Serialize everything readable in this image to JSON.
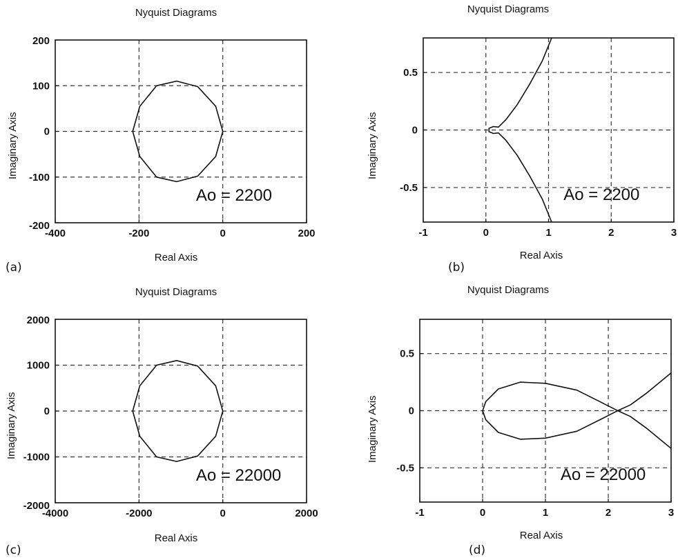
{
  "chart_data": [
    {
      "type": "line",
      "panel_label": "(a)",
      "title": "Nyquist Diagrams",
      "xlabel": "Real Axis",
      "ylabel": "Imaginary Axis",
      "xlim": [
        -400,
        200
      ],
      "ylim": [
        -200,
        200
      ],
      "xticks": [
        "-400",
        "-200",
        "0",
        "200"
      ],
      "yticks": [
        "-200",
        "-100",
        "0",
        "100",
        "200"
      ],
      "grid": true,
      "annotation": "Ao = 2200",
      "series": [
        {
          "x": [
            0,
            -17,
            -60,
            -110,
            -158,
            -198,
            -215,
            -198,
            -158,
            -110,
            -60,
            -17,
            0
          ],
          "y": [
            0,
            55,
            98,
            110,
            100,
            55,
            0,
            -55,
            -100,
            -110,
            -98,
            -55,
            0
          ]
        }
      ]
    },
    {
      "type": "line",
      "panel_label": "(b)",
      "title": "Nyquist Diagrams",
      "xlabel": "Real Axis",
      "ylabel": "Imaginary Axis",
      "xlim": [
        -1,
        3
      ],
      "ylim": [
        -0.8,
        0.8
      ],
      "xticks": [
        "-1",
        "0",
        "1",
        "2",
        "3"
      ],
      "yticks": [
        "0.5",
        "0",
        "-0.5"
      ],
      "grid": true,
      "annotation": "Ao = 2200",
      "series": [
        {
          "x": [
            1.05,
            0.9,
            0.7,
            0.5,
            0.32,
            0.2,
            0.12,
            0.05,
            0.05,
            0.12,
            0.2,
            0.32,
            0.5,
            0.7,
            0.9,
            1.05
          ],
          "y": [
            0.8,
            0.6,
            0.4,
            0.22,
            0.09,
            0.025,
            0.03,
            0.015,
            -0.015,
            -0.03,
            -0.025,
            -0.09,
            -0.22,
            -0.4,
            -0.6,
            -0.8
          ]
        }
      ]
    },
    {
      "type": "line",
      "panel_label": "(c)",
      "title": "Nyquist Diagrams",
      "xlabel": "Real Axis",
      "ylabel": "Imaginary Axis",
      "xlim": [
        -4000,
        2000
      ],
      "ylim": [
        -2000,
        2000
      ],
      "xticks": [
        "-4000",
        "-2000",
        "0",
        "2000"
      ],
      "yticks": [
        "-2000",
        "-1000",
        "0",
        "1000",
        "2000"
      ],
      "grid": true,
      "annotation": "Ao = 22000",
      "series": [
        {
          "x": [
            0,
            -170,
            -600,
            -1100,
            -1580,
            -1980,
            -2150,
            -1980,
            -1580,
            -1100,
            -600,
            -170,
            0
          ],
          "y": [
            0,
            550,
            980,
            1100,
            1000,
            550,
            0,
            -550,
            -1000,
            -1100,
            -980,
            -550,
            0
          ]
        }
      ]
    },
    {
      "type": "line",
      "panel_label": "(d)",
      "title": "Nyquist Diagrams",
      "xlabel": "Real Axis",
      "ylabel": "Imaginary Axis",
      "xlim": [
        -1,
        3
      ],
      "ylim": [
        -0.8,
        0.8
      ],
      "xticks": [
        "-1",
        "0",
        "1",
        "2",
        "3"
      ],
      "yticks": [
        "0.5",
        "0",
        "-0.5"
      ],
      "grid": true,
      "annotation": "Ao = 22000",
      "series": [
        {
          "x": [
            3,
            2.6,
            2.35,
            2.15,
            1.9,
            1.5,
            1.0,
            0.6,
            0.25,
            0.05,
            0,
            0.05,
            0.25,
            0.6,
            1.0,
            1.5,
            1.9,
            2.15,
            2.35,
            2.6,
            3
          ],
          "y": [
            -0.33,
            -0.15,
            -0.05,
            0,
            0.07,
            0.18,
            0.24,
            0.25,
            0.19,
            0.08,
            0,
            -0.08,
            -0.19,
            -0.25,
            -0.24,
            -0.18,
            -0.07,
            0,
            0.05,
            0.15,
            0.33
          ]
        }
      ]
    }
  ]
}
